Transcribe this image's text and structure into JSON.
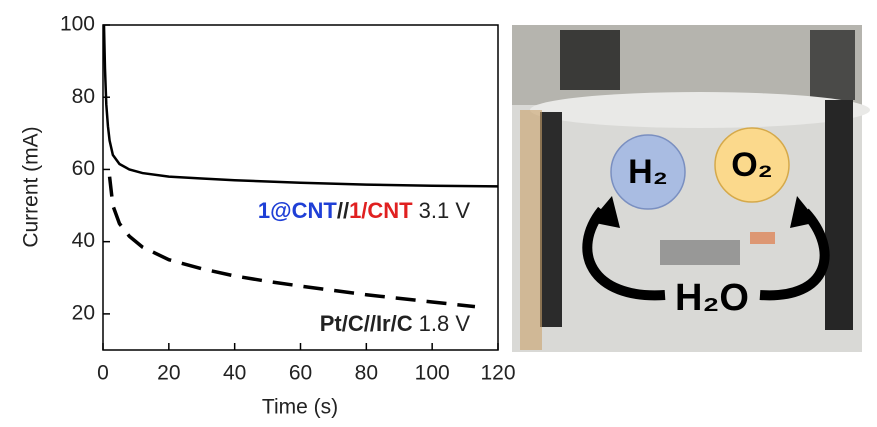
{
  "chart_data": {
    "type": "line",
    "x_label": "Time (s)",
    "y_label": "Current (mA)",
    "xlim": [
      0,
      120
    ],
    "xticks": [
      0,
      20,
      40,
      60,
      80,
      100,
      120
    ],
    "ylim": [
      10,
      100
    ],
    "yticks": [
      20,
      40,
      60,
      80,
      100
    ],
    "series": [
      {
        "color": "#000000",
        "style": "solid",
        "x": [
          0.3,
          0.6,
          1,
          1.5,
          2,
          3,
          5,
          8,
          12,
          20,
          30,
          40,
          60,
          80,
          100,
          120
        ],
        "values": [
          100,
          88,
          78,
          72,
          68,
          64,
          61.5,
          60,
          59,
          58,
          57.5,
          57,
          56.3,
          55.8,
          55.5,
          55.3
        ]
      },
      {
        "color": "#000000",
        "style": "dashed",
        "x": [
          2,
          3,
          5,
          8,
          12,
          20,
          30,
          40,
          50,
          60,
          70,
          80,
          90,
          100,
          113
        ],
        "values": [
          58,
          50,
          45,
          41.5,
          38.5,
          35,
          32.5,
          30.5,
          29,
          27.7,
          26.5,
          25.3,
          24.3,
          23.3,
          22
        ]
      }
    ],
    "annotations": [
      {
        "parts": [
          {
            "text": "1@CNT",
            "color": "#1f3fd6"
          },
          {
            "text": "//",
            "color": "#222222"
          },
          {
            "text": "1/CNT",
            "color": "#e02020"
          }
        ],
        "voltage": "3.1 V"
      },
      {
        "parts": [
          {
            "text": "Pt/C//Ir/C",
            "color": "#222222"
          }
        ],
        "voltage": "1.8 V"
      }
    ]
  },
  "photo": {
    "labels": [
      "H₂",
      "O₂",
      "H₂O"
    ]
  }
}
